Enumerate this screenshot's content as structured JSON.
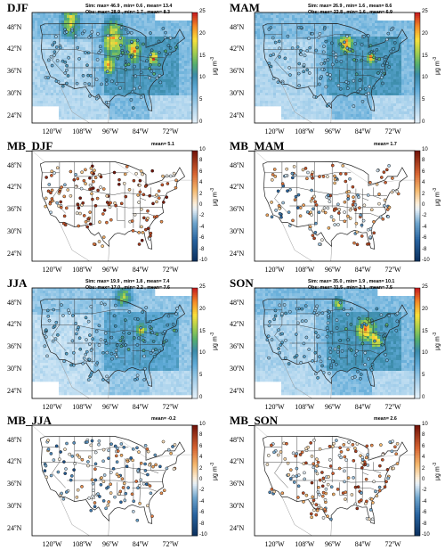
{
  "panels": [
    {
      "title": "DJF",
      "type": "conc",
      "stats_sim": "Sim: max= 46.9 , min= 0.6 , mean= 13.4",
      "stats_obs": "Obs: max= 28.9 , min= 1.7 , mean= 8.3",
      "mean_label": ""
    },
    {
      "title": "MAM",
      "type": "conc",
      "stats_sim": "Sim: max= 26.9 , min= 1.6 , mean= 8.6",
      "stats_obs": "Obs: max= 22.8 , min= 1.6 , mean= 6.9",
      "mean_label": ""
    },
    {
      "title": "MB_DJF",
      "type": "bias",
      "stats_sim": "",
      "stats_obs": "",
      "mean_label": "mean= 5.1"
    },
    {
      "title": "MB_MAM",
      "type": "bias",
      "stats_sim": "",
      "stats_obs": "",
      "mean_label": "mean= 1.7"
    },
    {
      "title": "JJA",
      "type": "conc",
      "stats_sim": "Sim: max= 19.9 , min= 1.8 , mean= 7.4",
      "stats_obs": "Obs: max= 17.0 , min= 2.2 , mean= 7.6",
      "mean_label": ""
    },
    {
      "title": "SON",
      "type": "conc",
      "stats_sim": "Sim: max= 35.0 , min= 1.9 , mean= 10.1",
      "stats_obs": "Obs: max= 31.5 , min= 2.1 , mean= 7.5",
      "mean_label": ""
    },
    {
      "title": "MB_JJA",
      "type": "bias",
      "stats_sim": "",
      "stats_obs": "",
      "mean_label": "mean= -0.2"
    },
    {
      "title": "MB_SON",
      "type": "bias",
      "stats_sim": "",
      "stats_obs": "",
      "mean_label": "mean= 2.6"
    }
  ],
  "lat_labels": [
    "48",
    "42",
    "36",
    "30",
    "24"
  ],
  "lat_suffix": "N",
  "lon_labels": [
    "120",
    "108",
    "96",
    "84",
    "72"
  ],
  "lon_suffix": "W",
  "degree": "o",
  "colorbar_conc": {
    "ticks": [
      "25",
      "20",
      "15",
      "10",
      "5",
      "0"
    ],
    "range": [
      0,
      25
    ]
  },
  "colorbar_bias": {
    "ticks": [
      "10",
      "8",
      "6",
      "4",
      "2",
      "0",
      "-2",
      "-4",
      "-6",
      "-8",
      "-10"
    ],
    "range": [
      -10,
      10
    ]
  },
  "unit": {
    "base": "μg m",
    "exp": "-3"
  }
}
